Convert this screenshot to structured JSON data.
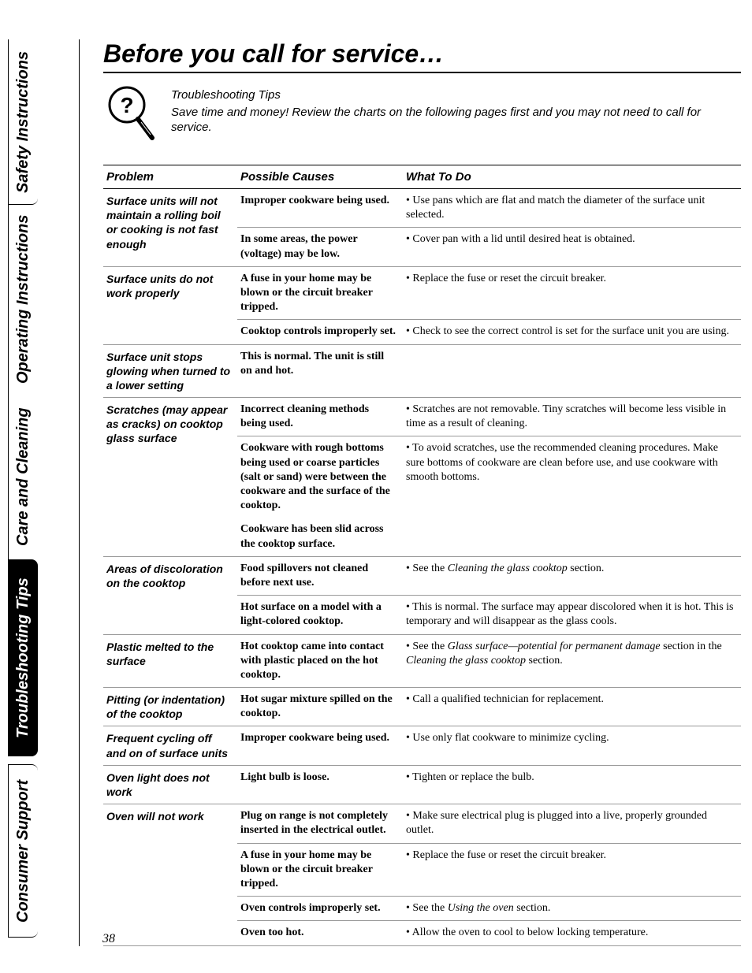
{
  "pageNumber": "38",
  "tabs": {
    "safety": "Safety Instructions",
    "operating": "Operating Instructions",
    "care": "Care and Cleaning",
    "troubleshooting": "Troubleshooting Tips",
    "consumer": "Consumer Support"
  },
  "title": "Before you call for service…",
  "intro": {
    "heading": "Troubleshooting Tips",
    "body": "Save time and money! Review the charts on the following pages first and you may not need to call for service."
  },
  "headers": {
    "problem": "Problem",
    "causes": "Possible Causes",
    "action": "What To Do"
  },
  "rows": [
    {
      "problem": "Surface units will not maintain a rolling boil or cooking is not fast enough",
      "sub": [
        {
          "cause": "Improper cookware being used.",
          "action": "• Use pans which are flat and match the diameter of the surface unit selected."
        },
        {
          "cause": "In some areas, the power (voltage) may be low.",
          "action": "• Cover pan with a lid until desired heat is obtained."
        }
      ]
    },
    {
      "problem": "Surface units do not work properly",
      "sub": [
        {
          "cause": "A fuse in your home may be blown or the circuit breaker tripped.",
          "action": "• Replace the fuse or reset the circuit breaker."
        },
        {
          "cause": "Cooktop controls improperly set.",
          "action": "• Check to see the correct control is set for the surface unit you are using."
        }
      ]
    },
    {
      "problem": "Surface unit stops glowing when turned to a lower setting",
      "sub": [
        {
          "cause": "This is normal. The unit is still on and hot.",
          "action": ""
        }
      ]
    },
    {
      "problem": "Scratches (may appear as cracks) on cooktop glass surface",
      "sub": [
        {
          "cause": "Incorrect cleaning methods being used.",
          "action": "• Scratches are not removable. Tiny scratches will become less visible in time as a result of cleaning."
        },
        {
          "cause": "Cookware with rough bottoms being used or coarse particles (salt or sand) were between the cookware and the surface of the cooktop.",
          "action": "• To avoid scratches, use the recommended cleaning procedures. Make sure bottoms of cookware are clean before use, and use cookware with smooth bottoms.",
          "noBorder": true
        },
        {
          "cause": "Cookware has been slid across the cooktop surface.",
          "action": ""
        }
      ]
    },
    {
      "problem": "Areas of discoloration on the cooktop",
      "sub": [
        {
          "cause": "Food spillovers not cleaned before next use.",
          "action_html": "• See the <span class=\"ital\">Cleaning the glass cooktop</span> section."
        },
        {
          "cause": "Hot surface on a model with a light-colored cooktop.",
          "action": "• This is normal. The surface may appear discolored when it is hot. This is temporary and will disappear as the glass cools."
        }
      ]
    },
    {
      "problem": "Plastic melted to the surface",
      "sub": [
        {
          "cause": "Hot cooktop came into contact with plastic placed on the hot cooktop.",
          "action_html": "• See the <span class=\"ital\">Glass surface—potential for permanent damage</span> section in the <span class=\"ital\">Cleaning the glass cooktop</span> section."
        }
      ]
    },
    {
      "problem": "Pitting (or indentation) of the cooktop",
      "sub": [
        {
          "cause": "Hot sugar mixture spilled on the cooktop.",
          "action": "• Call a qualified technician for replacement."
        }
      ]
    },
    {
      "problem": "Frequent cycling off and on of surface units",
      "sub": [
        {
          "cause": "Improper cookware being used.",
          "action": "• Use only flat cookware to minimize cycling."
        }
      ]
    },
    {
      "problem": "Oven light does not work",
      "sub": [
        {
          "cause": "Light bulb is loose.",
          "action": "• Tighten or replace the bulb."
        }
      ]
    },
    {
      "problem": "Oven will not work",
      "sub": [
        {
          "cause": "Plug on range is not completely inserted in the electrical outlet.",
          "action": "• Make sure electrical plug is plugged into a live, properly grounded outlet."
        },
        {
          "cause": "A fuse in your home may be blown or the circuit breaker tripped.",
          "action": "• Replace the fuse or reset the circuit breaker."
        },
        {
          "cause": "Oven controls improperly set.",
          "action_html": "• See the <span class=\"ital\">Using the oven</span> section."
        },
        {
          "cause": "Oven too hot.",
          "action": "• Allow the oven to cool to below locking temperature."
        }
      ]
    }
  ]
}
